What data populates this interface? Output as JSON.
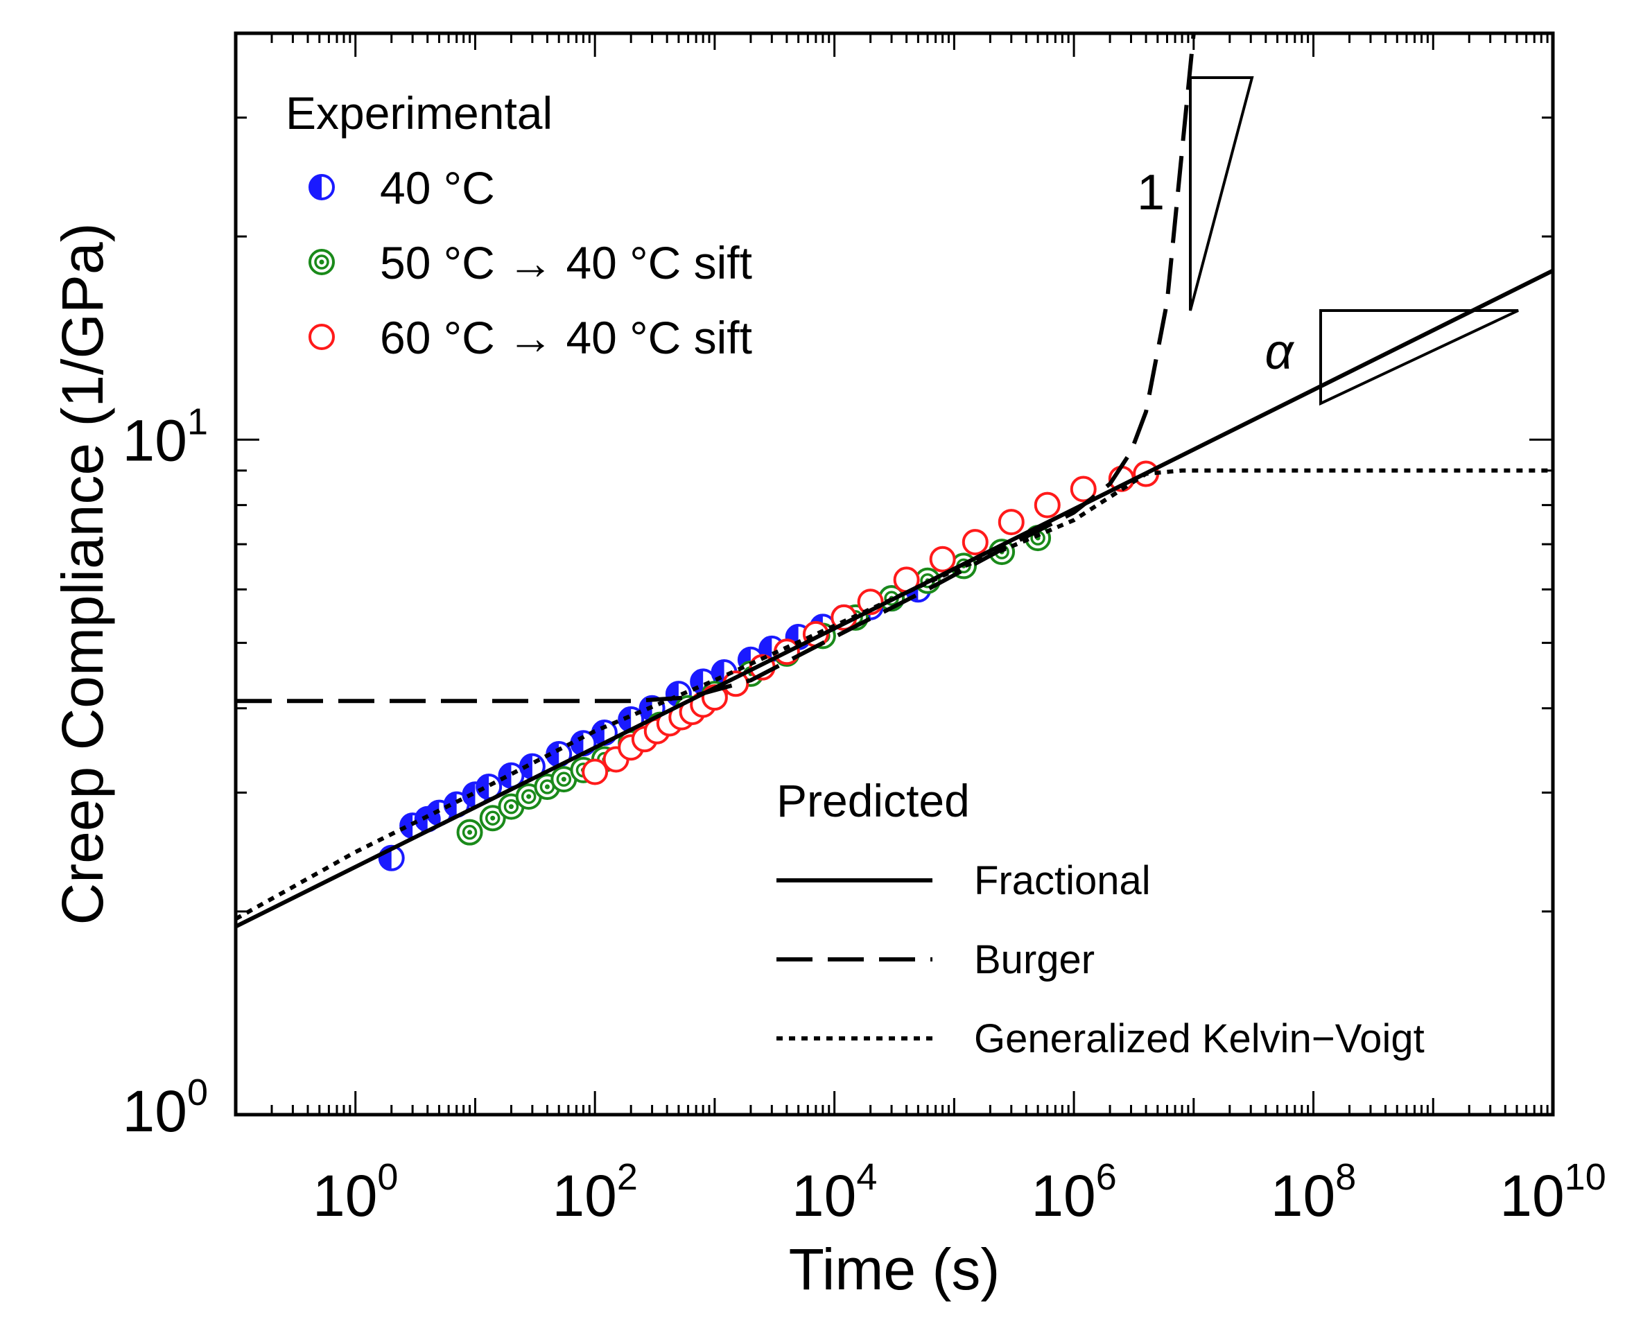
{
  "chart_data": {
    "type": "scatter",
    "title": "",
    "xlabel": "Time (s)",
    "ylabel": "Creep Compliance (1/GPa)",
    "x_scale": "log",
    "y_scale": "log",
    "xlim": [
      0.1,
      10000000000
    ],
    "ylim": [
      1,
      40
    ],
    "x_ticks": [
      {
        "base": "10",
        "exp": "0",
        "value": 1
      },
      {
        "base": "10",
        "exp": "2",
        "value": 100
      },
      {
        "base": "10",
        "exp": "4",
        "value": 10000
      },
      {
        "base": "10",
        "exp": "6",
        "value": 1000000
      },
      {
        "base": "10",
        "exp": "8",
        "value": 100000000
      },
      {
        "base": "10",
        "exp": "10",
        "value": 10000000000
      }
    ],
    "y_ticks": [
      {
        "base": "10",
        "exp": "0",
        "value": 1
      },
      {
        "base": "10",
        "exp": "1",
        "value": 10
      }
    ],
    "legend_experimental": {
      "title": "Experimental",
      "placement": "top-left"
    },
    "legend_predicted": {
      "title": "Predicted",
      "placement": "bottom-right"
    },
    "series": [
      {
        "name": "40 °C",
        "kind": "scatter",
        "marker": "half-filled-circle",
        "color": "#1a1aff",
        "x": [
          2,
          3,
          4,
          5,
          7,
          10,
          13,
          20,
          30,
          50,
          80,
          120,
          200,
          300,
          500,
          800,
          1200,
          2000,
          3000,
          5000,
          8000,
          12000,
          20000,
          30000,
          50000
        ],
        "y": [
          2.4,
          2.68,
          2.74,
          2.8,
          2.88,
          2.98,
          3.06,
          3.18,
          3.28,
          3.42,
          3.55,
          3.68,
          3.85,
          4.0,
          4.2,
          4.38,
          4.52,
          4.72,
          4.9,
          5.1,
          5.28,
          5.45,
          5.65,
          5.82,
          6.0
        ]
      },
      {
        "name": "50 °C → 40 °C sift",
        "kind": "scatter",
        "marker": "concentric-circle",
        "color": "#1a8a1a",
        "x": [
          9,
          14,
          20,
          28,
          40,
          55,
          80,
          120,
          200,
          350,
          600,
          1000,
          2000,
          4000,
          8000,
          15000,
          30000,
          60000,
          120000,
          250000,
          500000
        ],
        "y": [
          2.62,
          2.75,
          2.86,
          2.96,
          3.06,
          3.14,
          3.24,
          3.36,
          3.55,
          3.78,
          4.0,
          4.2,
          4.5,
          4.82,
          5.12,
          5.45,
          5.82,
          6.18,
          6.5,
          6.82,
          7.15
        ]
      },
      {
        "name": "60 °C → 40 °C sift",
        "kind": "scatter",
        "marker": "open-circle",
        "color": "#ff1a1a",
        "x": [
          100,
          150,
          200,
          260,
          330,
          420,
          530,
          650,
          800,
          1000,
          1500,
          2500,
          4000,
          7000,
          12000,
          20000,
          40000,
          80000,
          150000,
          300000,
          600000,
          1200000,
          2500000,
          4000000
        ],
        "y": [
          3.22,
          3.36,
          3.5,
          3.6,
          3.7,
          3.8,
          3.88,
          3.95,
          4.05,
          4.15,
          4.35,
          4.6,
          4.85,
          5.15,
          5.45,
          5.75,
          6.2,
          6.65,
          7.05,
          7.55,
          8.0,
          8.45,
          8.75,
          8.9
        ]
      },
      {
        "name": "Fractional",
        "kind": "line",
        "style": "solid",
        "color": "#000000",
        "x": [
          0.1,
          10000000000
        ],
        "y": [
          1.9,
          17.8
        ]
      },
      {
        "name": "Burger",
        "kind": "line",
        "style": "dashed",
        "color": "#000000",
        "x": [
          0.1,
          200,
          600,
          2000,
          10000,
          60000,
          300000,
          1000000,
          2000000,
          3000000,
          4000000,
          6000000,
          10000000
        ],
        "y": [
          4.1,
          4.1,
          4.15,
          4.4,
          5.1,
          6.0,
          7.0,
          7.8,
          8.6,
          9.6,
          11.0,
          16.0,
          40.0
        ]
      },
      {
        "name": "Generalized Kelvin−Voigt",
        "kind": "line",
        "style": "dotted",
        "color": "#000000",
        "x": [
          0.1,
          1,
          10,
          100,
          1000,
          10000,
          100000,
          1000000,
          4000000,
          8000000,
          10000000000
        ],
        "y": [
          1.95,
          2.45,
          3.0,
          3.7,
          4.4,
          5.3,
          6.4,
          7.6,
          8.9,
          9.0,
          9.0
        ]
      }
    ],
    "annotations": [
      {
        "label": "1",
        "shape": "slope-triangle",
        "slope": 1
      },
      {
        "label": "α",
        "shape": "slope-triangle",
        "slope": "alpha"
      }
    ]
  }
}
